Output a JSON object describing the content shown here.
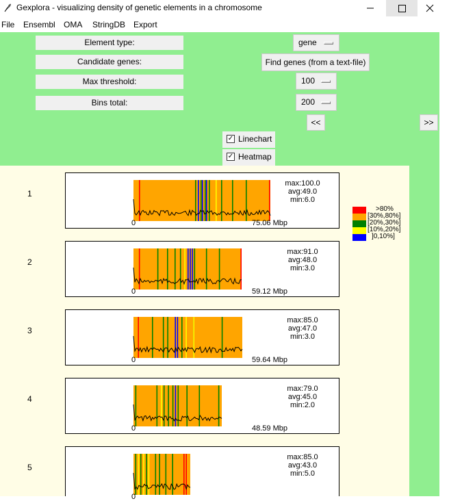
{
  "window": {
    "title": "Gexplora - visualizing density of genetic elements in a chromosome"
  },
  "menu": [
    "File",
    "Ensembl",
    "OMA",
    "StringDB",
    "Export"
  ],
  "controls": {
    "element_type_label": "Element type:",
    "candidate_genes_label": "Candidate genes:",
    "max_threshold_label": "Max threshold:",
    "bins_total_label": "Bins total:",
    "element_type_value": "gene",
    "find_genes_button": "Find genes (from a text-file)",
    "max_threshold_value": "100",
    "bins_total_value": "200",
    "prev_button": "<<",
    "next_button": ">>",
    "linechart_label": "Linechart",
    "linechart_checked": true,
    "heatmap_label": "Heatmap",
    "heatmap_checked": true
  },
  "legend": [
    {
      "label": ">80%",
      "color": "#ff0000"
    },
    {
      "label": "[30%,80%]",
      "color": "#ffa500"
    },
    {
      "label": "[20%,30%]",
      "color": "#008000"
    },
    {
      "label": "[10%,20%]",
      "color": "#ffff00"
    },
    {
      "label": "]0,10%]",
      "color": "#0000ff"
    }
  ],
  "chromosomes": [
    {
      "number": "1",
      "max": "max:100.0",
      "avg": "avg:49.0",
      "min": "min:6.0",
      "start": "0",
      "end": "75.06 Mbp",
      "length_mbp": 75.06,
      "bands": [
        {
          "pos": 0.04,
          "color": "red"
        },
        {
          "pos": 0.45,
          "color": "green"
        },
        {
          "pos": 0.47,
          "color": "blue"
        },
        {
          "pos": 0.49,
          "color": "green"
        },
        {
          "pos": 0.5,
          "color": "blue"
        },
        {
          "pos": 0.52,
          "color": "green"
        },
        {
          "pos": 0.53,
          "color": "blue"
        },
        {
          "pos": 0.55,
          "color": "green"
        },
        {
          "pos": 0.6,
          "color": "yellow"
        },
        {
          "pos": 0.64,
          "color": "green"
        },
        {
          "pos": 0.72,
          "color": "green"
        },
        {
          "pos": 0.82,
          "color": "green"
        },
        {
          "pos": 0.99,
          "color": "red"
        }
      ]
    },
    {
      "number": "2",
      "max": "max:91.0",
      "avg": "avg:48.0",
      "min": "min:3.0",
      "start": "0",
      "end": "59.12 Mbp",
      "length_mbp": 59.12,
      "bands": [
        {
          "pos": 0.05,
          "color": "red"
        },
        {
          "pos": 0.22,
          "color": "green"
        },
        {
          "pos": 0.31,
          "color": "green"
        },
        {
          "pos": 0.38,
          "color": "green"
        },
        {
          "pos": 0.43,
          "color": "green"
        },
        {
          "pos": 0.47,
          "color": "yellow"
        },
        {
          "pos": 0.5,
          "color": "blue"
        },
        {
          "pos": 0.52,
          "color": "blue"
        },
        {
          "pos": 0.54,
          "color": "blue"
        },
        {
          "pos": 0.56,
          "color": "green"
        },
        {
          "pos": 0.67,
          "color": "green"
        },
        {
          "pos": 0.79,
          "color": "green"
        },
        {
          "pos": 0.99,
          "color": "red"
        }
      ]
    },
    {
      "number": "3",
      "max": "max:85.0",
      "avg": "avg:47.0",
      "min": "min:3.0",
      "start": "0",
      "end": "59.64 Mbp",
      "length_mbp": 59.64,
      "bands": [
        {
          "pos": 0.04,
          "color": "red"
        },
        {
          "pos": 0.17,
          "color": "green"
        },
        {
          "pos": 0.27,
          "color": "green"
        },
        {
          "pos": 0.31,
          "color": "green"
        },
        {
          "pos": 0.38,
          "color": "blue"
        },
        {
          "pos": 0.4,
          "color": "blue"
        },
        {
          "pos": 0.44,
          "color": "green"
        },
        {
          "pos": 0.48,
          "color": "yellow"
        },
        {
          "pos": 0.55,
          "color": "green"
        },
        {
          "pos": 0.81,
          "color": "green"
        },
        {
          "pos": 0.55,
          "color": "yellow"
        }
      ]
    },
    {
      "number": "4",
      "max": "max:79.0",
      "avg": "avg:45.0",
      "min": "min:2.0",
      "start": "0",
      "end": "48.59 Mbp",
      "length_mbp": 48.59,
      "bands": [
        {
          "pos": 0.02,
          "color": "green"
        },
        {
          "pos": 0.26,
          "color": "green"
        },
        {
          "pos": 0.31,
          "color": "yellow"
        },
        {
          "pos": 0.34,
          "color": "green"
        },
        {
          "pos": 0.39,
          "color": "green"
        },
        {
          "pos": 0.44,
          "color": "green"
        },
        {
          "pos": 0.47,
          "color": "blue"
        },
        {
          "pos": 0.5,
          "color": "green"
        },
        {
          "pos": 0.6,
          "color": "green"
        },
        {
          "pos": 0.74,
          "color": "green"
        },
        {
          "pos": 0.96,
          "color": "green"
        }
      ]
    },
    {
      "number": "5",
      "max": "max:85.0",
      "avg": "avg:43.0",
      "min": "min:5.0",
      "start": "0",
      "end": "",
      "length_mbp": 31.0,
      "bands": [
        {
          "pos": 0.03,
          "color": "green"
        },
        {
          "pos": 0.08,
          "color": "yellow"
        },
        {
          "pos": 0.12,
          "color": "green"
        },
        {
          "pos": 0.17,
          "color": "yellow"
        },
        {
          "pos": 0.22,
          "color": "green"
        },
        {
          "pos": 0.26,
          "color": "yellow"
        },
        {
          "pos": 0.38,
          "color": "green"
        },
        {
          "pos": 0.45,
          "color": "green"
        },
        {
          "pos": 0.56,
          "color": "green"
        },
        {
          "pos": 0.68,
          "color": "green"
        },
        {
          "pos": 0.88,
          "color": "red"
        },
        {
          "pos": 0.92,
          "color": "red"
        }
      ]
    }
  ]
}
